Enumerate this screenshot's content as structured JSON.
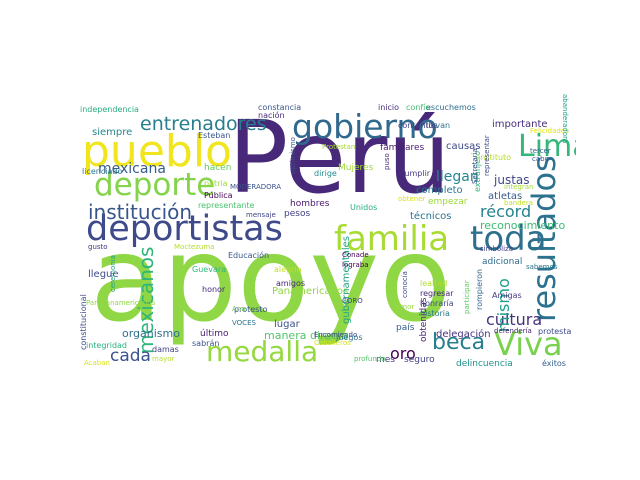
{
  "words": [
    {
      "text": "apoyo",
      "color": "#8fd744"
    },
    {
      "text": "Perú",
      "color": "#482878"
    },
    {
      "text": "deportistas",
      "color": "#3e4a89"
    },
    {
      "text": "pueblo",
      "color": "#f1e51d"
    },
    {
      "text": "gobierno",
      "color": "#31688e"
    },
    {
      "text": "deporte",
      "color": "#84d44b"
    },
    {
      "text": "familia",
      "color": "#a8db34"
    },
    {
      "text": "toda",
      "color": "#2e6f8e"
    },
    {
      "text": "Viva",
      "color": "#7ad151"
    },
    {
      "text": "medalla",
      "color": "#95d840"
    },
    {
      "text": "resultados",
      "color": "#2c728e"
    },
    {
      "text": "Lima",
      "color": "#35b779"
    },
    {
      "text": "institución",
      "color": "#39568c"
    },
    {
      "text": "entrenadores",
      "color": "#287d8e"
    },
    {
      "text": "mexicana",
      "color": "#365c8d"
    },
    {
      "text": "beca",
      "color": "#277f8e"
    },
    {
      "text": "mexicanos",
      "color": "#31b57b"
    },
    {
      "text": "cada",
      "color": "#3b528b"
    },
    {
      "text": "récord",
      "color": "#26828e"
    },
    {
      "text": "oro",
      "color": "#440154"
    },
    {
      "text": "cultura",
      "color": "#46337e"
    },
    {
      "text": "mismo",
      "color": "#1f9f88"
    },
    {
      "text": "llegan",
      "color": "#25858e"
    },
    {
      "text": "reconocimiento",
      "color": "#3dbc74"
    },
    {
      "text": "manera directa",
      "color": "#52c569"
    },
    {
      "text": "organismo",
      "color": "#2d708e"
    },
    {
      "text": "Panamericanos",
      "color": "#90d743"
    },
    {
      "text": "delincuencia",
      "color": "#20928c"
    },
    {
      "text": "delegación",
      "color": "#46327e"
    },
    {
      "text": "justas",
      "color": "#3f4788"
    },
    {
      "text": "atletas",
      "color": "#38598c"
    },
    {
      "text": "empezar",
      "color": "#9bd93c"
    },
    {
      "text": "completo",
      "color": "#2a788e"
    },
    {
      "text": "causas",
      "color": "#3f4889"
    },
    {
      "text": "familiares",
      "color": "#481a6c"
    },
    {
      "text": "importante",
      "color": "#472d7b"
    },
    {
      "text": "siempre",
      "color": "#24878e"
    },
    {
      "text": "hacen",
      "color": "#67cc5c"
    },
    {
      "text": "hombres",
      "color": "#48196b"
    },
    {
      "text": "Mujeres",
      "color": "#a2da37"
    },
    {
      "text": "técnicos",
      "color": "#2b748e"
    },
    {
      "text": "pesos",
      "color": "#424086"
    },
    {
      "text": "lugar",
      "color": "#3b518b"
    },
    {
      "text": "último",
      "color": "#482173"
    },
    {
      "text": "adicional",
      "color": "#2f6b8e"
    },
    {
      "text": "país",
      "color": "#355f8d"
    },
    {
      "text": "seguro",
      "color": "#414487"
    },
    {
      "text": "mes",
      "color": "#453781"
    },
    {
      "text": "llegue",
      "color": "#3e4c8a"
    },
    {
      "text": "gubernamentales",
      "color": "#21a685"
    },
    {
      "text": "obtenidas",
      "color": "#481f70"
    },
    {
      "text": "Esteban",
      "color": "#3a548c"
    },
    {
      "text": "licenciado",
      "color": "#2a778e"
    },
    {
      "text": "independencia",
      "color": "#25ac82"
    },
    {
      "text": "constancia",
      "color": "#39558c"
    },
    {
      "text": "nación",
      "color": "#472c7a"
    },
    {
      "text": "representante",
      "color": "#4ac16d"
    },
    {
      "text": "Unidos",
      "color": "#29af7f"
    },
    {
      "text": "Educación",
      "color": "#3a548c"
    },
    {
      "text": "dirige",
      "color": "#23898e"
    },
    {
      "text": "cumplir",
      "color": "#443983"
    },
    {
      "text": "extranjero",
      "color": "#31b57b"
    },
    {
      "text": "instituto",
      "color": "#b5de2b"
    },
    {
      "text": "Felicidades",
      "color": "#dde318"
    },
    {
      "text": "escuchemos",
      "color": "#2e6e8e"
    },
    {
      "text": "inicio",
      "color": "#472f7d"
    },
    {
      "text": "confío",
      "color": "#40bd72"
    },
    {
      "text": "Protestan",
      "color": "#a5db36"
    },
    {
      "text": "llevan",
      "color": "#2d718e"
    },
    {
      "text": "contentos",
      "color": "#423f85"
    },
    {
      "text": "profundo",
      "color": "#54c568"
    },
    {
      "text": "Encomiendo",
      "color": "#3f4889"
    },
    {
      "text": "mensaje",
      "color": "#404588"
    },
    {
      "text": "patria",
      "color": "#9dd93b"
    },
    {
      "text": "Pública",
      "color": "#440154"
    },
    {
      "text": "MODERADORA",
      "color": "#3b528b"
    },
    {
      "text": "Guevara",
      "color": "#31b57b"
    },
    {
      "text": "alegría",
      "color": "#c0df25"
    },
    {
      "text": "amigos",
      "color": "#482878"
    },
    {
      "text": "honor",
      "color": "#472d7b"
    },
    {
      "text": "protesto",
      "color": "#3b528b"
    },
    {
      "text": "Conade",
      "color": "#440154"
    },
    {
      "text": "lograba",
      "color": "#440154"
    },
    {
      "text": "CORO",
      "color": "#404588"
    },
    {
      "text": "lealtad",
      "color": "#b2dd2d"
    },
    {
      "text": "regresar",
      "color": "#482878"
    },
    {
      "text": "honraría",
      "color": "#3e4a89"
    },
    {
      "text": "historia",
      "color": "#2a788e"
    },
    {
      "text": "Amigas",
      "color": "#433e85"
    },
    {
      "text": "participar",
      "color": "#5ec962"
    },
    {
      "text": "rompieron",
      "color": "#31688e"
    },
    {
      "text": "defendería",
      "color": "#482475"
    },
    {
      "text": "protesta",
      "color": "#3e4a89"
    },
    {
      "text": "éxitos",
      "color": "#35608d"
    },
    {
      "text": "Juegos",
      "color": "#2e6e8e"
    },
    {
      "text": "Caballeros",
      "color": "#d8e219"
    },
    {
      "text": "sabrán",
      "color": "#3b528b"
    },
    {
      "text": "VOCES",
      "color": "#2c728e"
    },
    {
      "text": "damas",
      "color": "#424086"
    },
    {
      "text": "integridad",
      "color": "#29af7f"
    },
    {
      "text": "constitucional",
      "color": "#3e4a89"
    },
    {
      "text": "Acaban",
      "color": "#dce319"
    },
    {
      "text": "mayor",
      "color": "#b5de2b"
    },
    {
      "text": "Ana",
      "color": "#6ece58"
    },
    {
      "text": "Parapanamericanos",
      "color": "#8fd744"
    },
    {
      "text": "gusto",
      "color": "#46327e"
    },
    {
      "text": "ceremonia",
      "color": "#1fa187"
    },
    {
      "text": "Moctezuma",
      "color": "#b5de2b"
    },
    {
      "text": "Secretaria",
      "color": "#3b528b"
    },
    {
      "text": "representar",
      "color": "#3e4a89"
    },
    {
      "text": "integran",
      "color": "#a5db36"
    },
    {
      "text": "obtener",
      "color": "#dde318"
    },
    {
      "text": "bandera",
      "color": "#c2df23"
    },
    {
      "text": "tercer",
      "color": "#365c8d"
    },
    {
      "text": "cabo",
      "color": "#3b528b"
    },
    {
      "text": "simboliza",
      "color": "#424086"
    },
    {
      "text": "sabemos",
      "color": "#2a788e"
    },
    {
      "text": "amor",
      "color": "#9bd93c"
    },
    {
      "text": "puso",
      "color": "#482878"
    },
    {
      "text": "conocía",
      "color": "#3e4a89"
    },
    {
      "text": "abanderadora",
      "color": "#1f9e89"
    },
    {
      "text": "optimismo",
      "color": "#3b528b"
    },
    {
      "text": "sola",
      "color": "#2a788e"
    },
    {
      "text": "país",
      "color": "#3e4a89"
    },
    {
      "text": "causa",
      "color": "#1f9e89"
    },
    {
      "text": "plena",
      "color": "#8fd744"
    },
    {
      "text": "tarea",
      "color": "#31688e"
    },
    {
      "text": "quiero",
      "color": "#482878"
    },
    {
      "text": "tiempo",
      "color": "#a5db36"
    }
  ]
}
